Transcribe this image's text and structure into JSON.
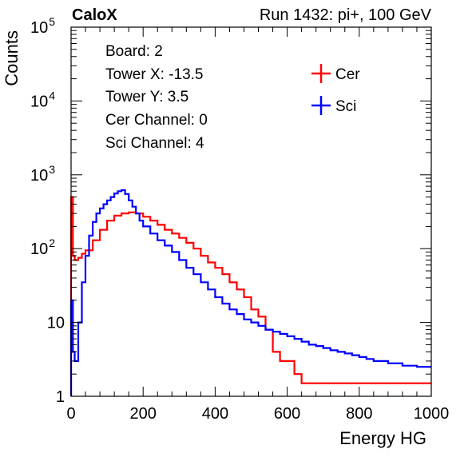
{
  "header": {
    "brand": "CaloX",
    "run_label": "Run 1432: pi+, 100 GeV"
  },
  "info_box": [
    "Board: 2",
    "Tower X: -13.5",
    "Tower Y: 3.5",
    "Cer Channel: 0",
    "Sci Channel: 4"
  ],
  "chart_data": {
    "type": "line",
    "style": "step-histogram",
    "xlabel": "Energy HG",
    "ylabel": "Counts",
    "xlim": [
      0,
      1000
    ],
    "ylim": [
      1,
      100000
    ],
    "yscale": "log",
    "grid": false,
    "legend_position": "top-right",
    "x_ticks": [
      {
        "value": 0,
        "label": "0"
      },
      {
        "value": 200,
        "label": "200"
      },
      {
        "value": 400,
        "label": "400"
      },
      {
        "value": 600,
        "label": "600"
      },
      {
        "value": 800,
        "label": "800"
      },
      {
        "value": 1000,
        "label": "1000"
      }
    ],
    "y_ticks": [
      {
        "value": 1,
        "base": "1",
        "exp": ""
      },
      {
        "value": 10,
        "base": "10",
        "exp": ""
      },
      {
        "value": 100,
        "base": "10",
        "exp": "2"
      },
      {
        "value": 1000,
        "base": "10",
        "exp": "3"
      },
      {
        "value": 10000,
        "base": "10",
        "exp": "4"
      },
      {
        "value": 100000,
        "base": "10",
        "exp": "5"
      }
    ],
    "series": [
      {
        "name": "Cer",
        "color": "#ff0000",
        "x": [
          0,
          5,
          10,
          20,
          30,
          40,
          60,
          80,
          100,
          120,
          140,
          160,
          180,
          200,
          220,
          240,
          260,
          280,
          300,
          320,
          340,
          360,
          380,
          400,
          420,
          440,
          460,
          480,
          500,
          520,
          540,
          560,
          580,
          600,
          620,
          640
        ],
        "y": [
          500,
          80,
          70,
          75,
          85,
          95,
          130,
          180,
          240,
          280,
          300,
          310,
          300,
          270,
          240,
          210,
          180,
          160,
          140,
          120,
          100,
          80,
          65,
          55,
          45,
          35,
          28,
          22,
          15,
          12,
          8,
          4,
          3,
          3,
          2,
          1.5
        ]
      },
      {
        "name": "Sci",
        "color": "#0000ff",
        "x": [
          0,
          5,
          10,
          20,
          30,
          40,
          50,
          60,
          70,
          80,
          90,
          100,
          110,
          120,
          130,
          140,
          150,
          160,
          170,
          180,
          190,
          200,
          220,
          240,
          260,
          280,
          300,
          320,
          340,
          360,
          380,
          400,
          420,
          440,
          460,
          480,
          500,
          520,
          540,
          560,
          580,
          600,
          620,
          640,
          660,
          680,
          700,
          720,
          740,
          760,
          780,
          800,
          820,
          840,
          860,
          880,
          900,
          920,
          940,
          960,
          980,
          1000
        ],
        "y": [
          20,
          4,
          3,
          10,
          35,
          80,
          150,
          230,
          300,
          350,
          400,
          450,
          500,
          560,
          600,
          620,
          550,
          450,
          370,
          300,
          240,
          200,
          160,
          130,
          110,
          90,
          70,
          55,
          45,
          35,
          28,
          22,
          18,
          15,
          13,
          11,
          10,
          9,
          8,
          7.5,
          7,
          6.5,
          6,
          5.5,
          5,
          4.8,
          4.5,
          4.2,
          4,
          3.8,
          3.6,
          3.4,
          3.2,
          3,
          3,
          2.8,
          2.8,
          2.6,
          2.6,
          2.5,
          2.5,
          2.5
        ]
      }
    ]
  }
}
